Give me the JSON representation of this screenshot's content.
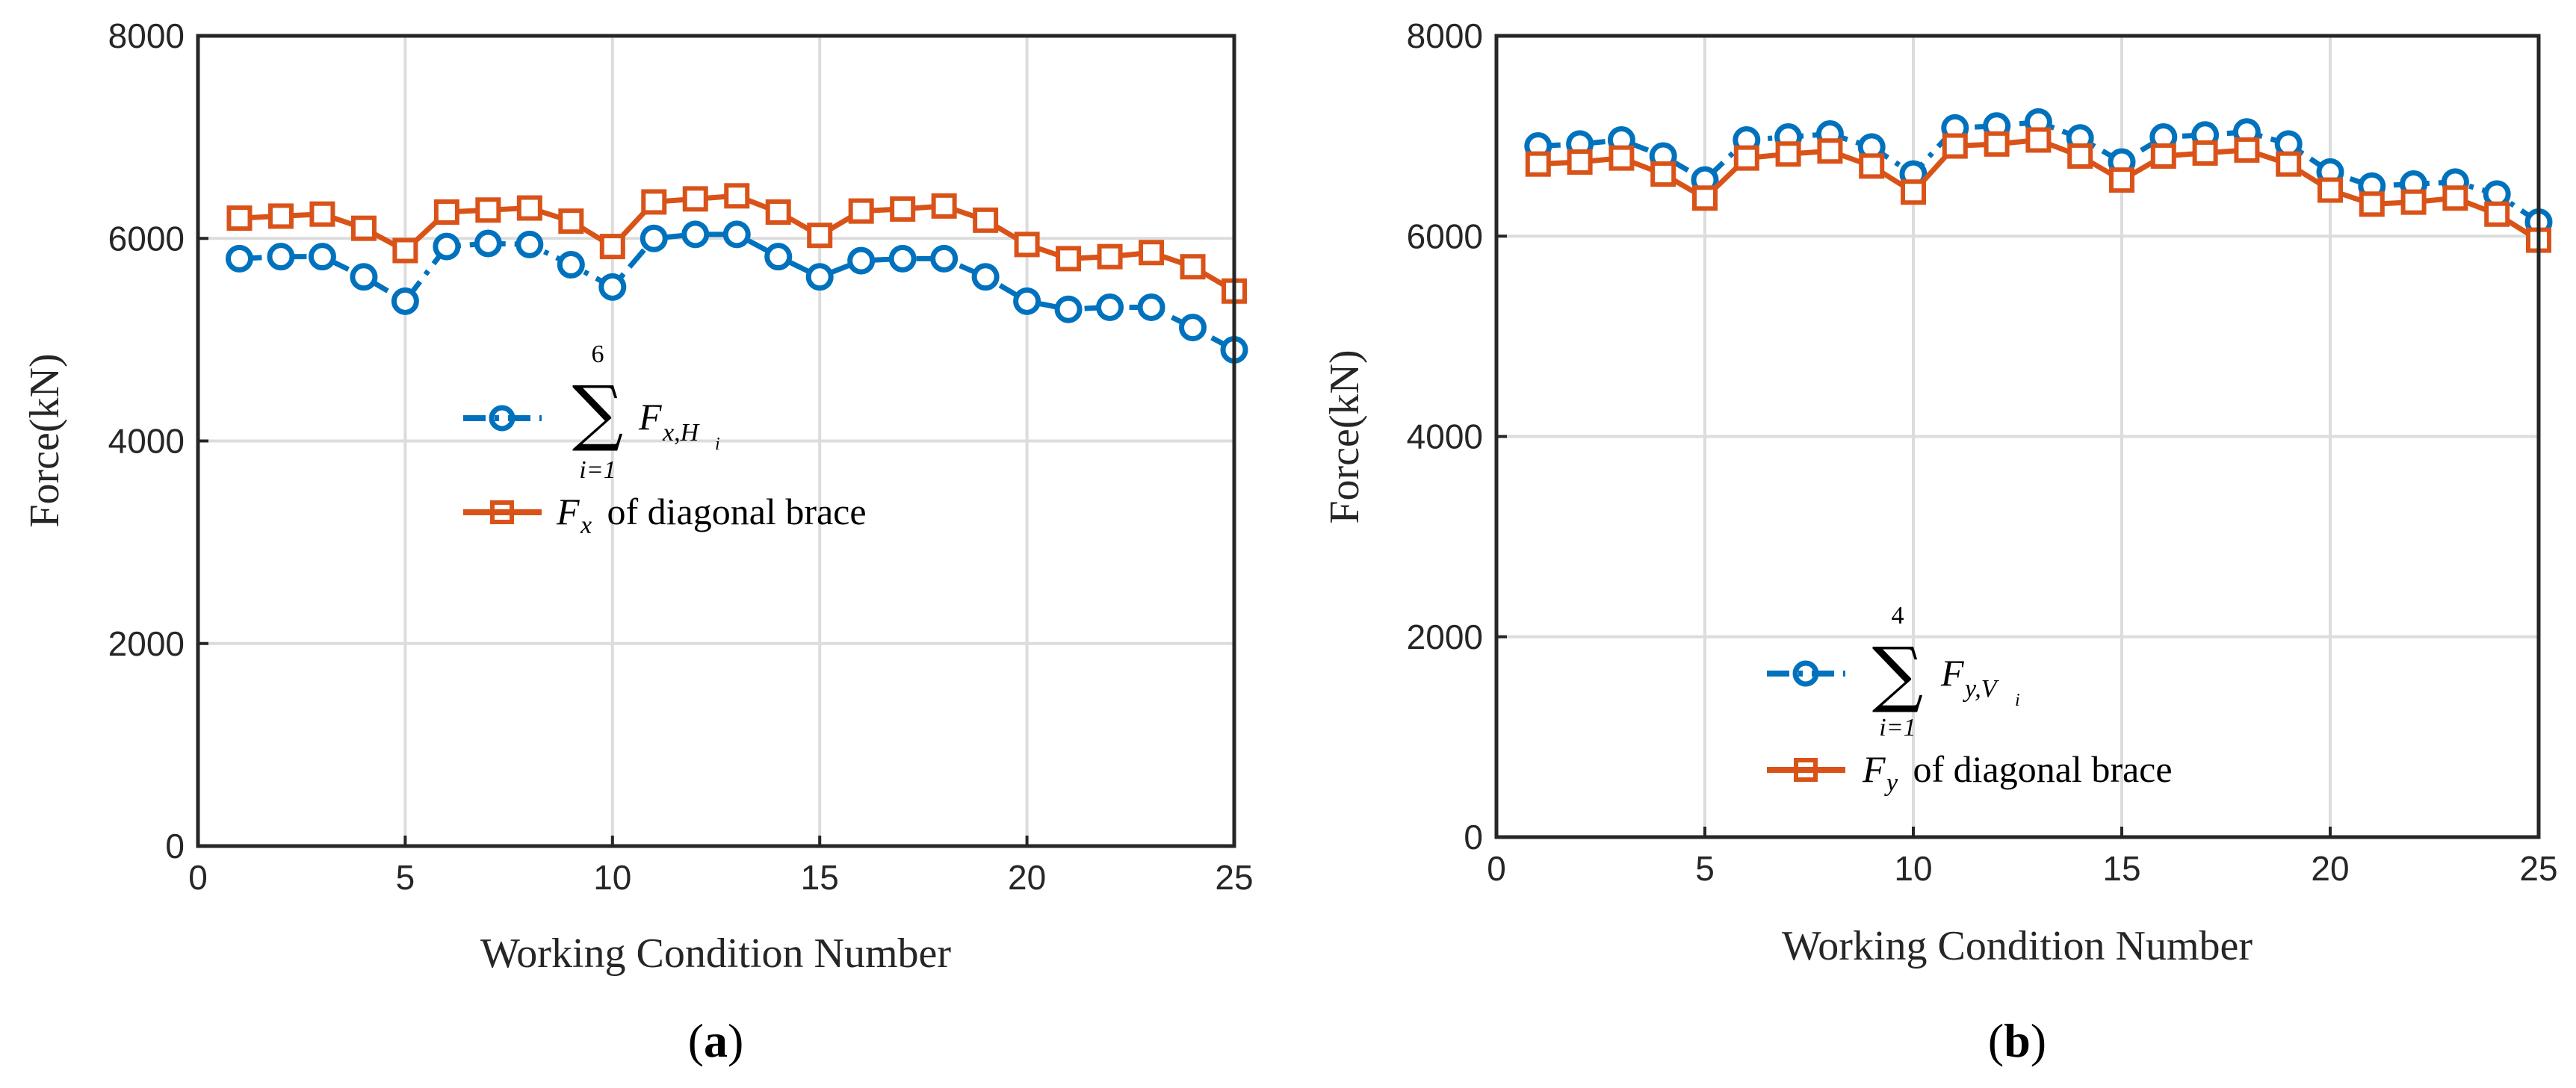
{
  "chart_data": [
    {
      "type": "line",
      "panel_label": "(a)",
      "panel_letter": "a",
      "xlabel": "Working Condition Number",
      "ylabel": "Force(kN)",
      "xlim": [
        0,
        25
      ],
      "ylim": [
        0,
        8000
      ],
      "xticks": [
        0,
        5,
        10,
        15,
        20,
        25
      ],
      "yticks": [
        0,
        2000,
        4000,
        6000,
        8000
      ],
      "grid": true,
      "legend_position": "center",
      "x": [
        1,
        2,
        3,
        4,
        5,
        6,
        7,
        8,
        9,
        10,
        11,
        12,
        13,
        14,
        15,
        16,
        17,
        18,
        19,
        20,
        21,
        22,
        23,
        24,
        25
      ],
      "series": [
        {
          "name": "sum_{i=1}^{6} F_{x,H_i}",
          "color": "#0072BD",
          "marker": "circle",
          "linestyle": "dash-dot",
          "values": [
            5800,
            5820,
            5820,
            5620,
            5380,
            5920,
            5950,
            5940,
            5740,
            5520,
            6000,
            6040,
            6040,
            5820,
            5620,
            5780,
            5800,
            5800,
            5620,
            5380,
            5300,
            5320,
            5320,
            5120,
            4900
          ]
        },
        {
          "name": "F_x of diagonal brace",
          "color": "#D95319",
          "marker": "square",
          "linestyle": "solid",
          "values": [
            6200,
            6220,
            6240,
            6100,
            5880,
            6260,
            6280,
            6300,
            6170,
            5920,
            6360,
            6390,
            6420,
            6260,
            6030,
            6270,
            6290,
            6320,
            6180,
            5940,
            5800,
            5820,
            5860,
            5720,
            5480
          ]
        }
      ],
      "legend": {
        "entry1": {
          "sum_upper": "6",
          "sum_lower": "i=1",
          "symbol": "F",
          "sub_main": "x,H",
          "sub_index": "i"
        },
        "entry2": {
          "symbol": "F",
          "sub": "x",
          "text": " of diagonal brace"
        }
      }
    },
    {
      "type": "line",
      "panel_label": "(b)",
      "panel_letter": "b",
      "xlabel": "Working Condition Number",
      "ylabel": "Force(kN)",
      "xlim": [
        0,
        25
      ],
      "ylim": [
        0,
        8000
      ],
      "xticks": [
        0,
        5,
        10,
        15,
        20,
        25
      ],
      "yticks": [
        0,
        2000,
        4000,
        6000,
        8000
      ],
      "grid": true,
      "legend_position": "bottom-center",
      "x": [
        1,
        2,
        3,
        4,
        5,
        6,
        7,
        8,
        9,
        10,
        11,
        12,
        13,
        14,
        15,
        16,
        17,
        18,
        19,
        20,
        21,
        22,
        23,
        24,
        25
      ],
      "series": [
        {
          "name": "sum_{i=1}^{4} F_{y,V_i}",
          "color": "#0072BD",
          "marker": "circle",
          "linestyle": "dash-dot",
          "values": [
            6900,
            6920,
            6960,
            6800,
            6560,
            6960,
            6990,
            7020,
            6890,
            6620,
            7080,
            7100,
            7140,
            6980,
            6740,
            6990,
            7010,
            7040,
            6920,
            6640,
            6500,
            6520,
            6540,
            6420,
            6140
          ]
        },
        {
          "name": "F_y of diagonal brace",
          "color": "#D95319",
          "marker": "square",
          "linestyle": "solid",
          "values": [
            6720,
            6740,
            6780,
            6620,
            6380,
            6780,
            6820,
            6850,
            6700,
            6440,
            6900,
            6920,
            6960,
            6800,
            6560,
            6800,
            6830,
            6860,
            6720,
            6460,
            6320,
            6340,
            6380,
            6220,
            5960
          ]
        }
      ],
      "legend": {
        "entry1": {
          "sum_upper": "4",
          "sum_lower": "i=1",
          "symbol": "F",
          "sub_main": "y,V",
          "sub_index": "i"
        },
        "entry2": {
          "symbol": "F",
          "sub": "y",
          "text": " of diagonal brace"
        }
      }
    }
  ]
}
